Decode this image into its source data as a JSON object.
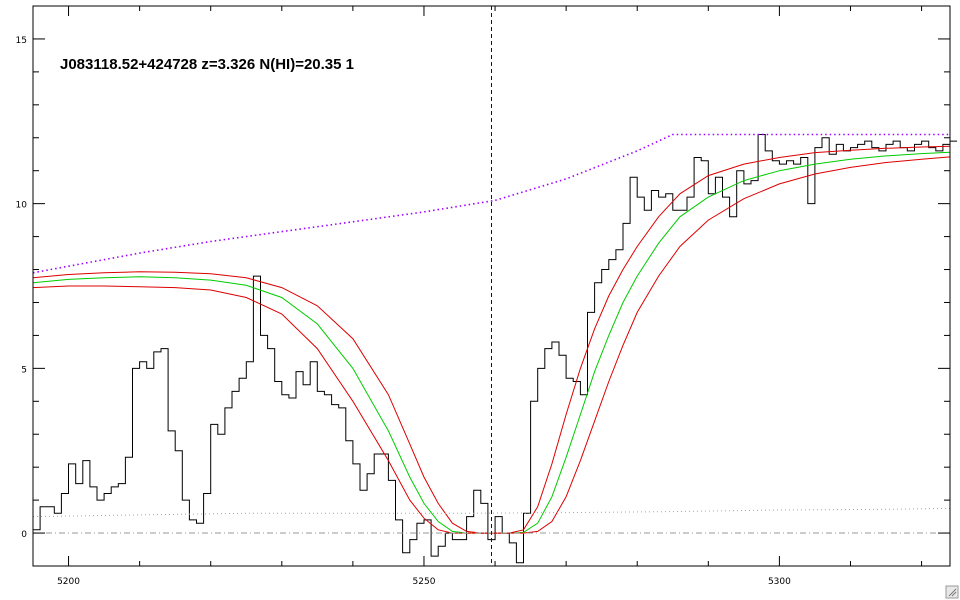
{
  "chart_data": {
    "type": "line",
    "title": "J083118.52+424728 z=3.326 N(HI)=20.35 1",
    "xlabel": "",
    "ylabel": "",
    "xlim": [
      5195,
      5324
    ],
    "ylim": [
      -1,
      16
    ],
    "xticks": [
      {
        "value": 5200,
        "label": "5200"
      },
      {
        "value": 5250,
        "label": "5250"
      },
      {
        "value": 5300,
        "label": "5300"
      }
    ],
    "yticks": [
      {
        "value": 0,
        "label": "0"
      },
      {
        "value": 5,
        "label": "5"
      },
      {
        "value": 10,
        "label": "10"
      },
      {
        "value": 15,
        "label": "15"
      }
    ],
    "grid": false,
    "center_marker_x": 5259.5,
    "zero_line_y": 0,
    "colors": {
      "flux": "#000000",
      "fit": "#00cc00",
      "bounds": "#dd0000",
      "continuum": "#a000ff",
      "error": "#ff8844",
      "marker": "#0000cc",
      "zero": "#999999"
    },
    "series": [
      {
        "key": "flux",
        "style": "step",
        "x": [
          5195,
          5196,
          5197,
          5198,
          5199,
          5200,
          5201,
          5202,
          5203,
          5204,
          5205,
          5206,
          5207,
          5208,
          5209,
          5210,
          5211,
          5212,
          5213,
          5214,
          5215,
          5216,
          5217,
          5218,
          5219,
          5220,
          5221,
          5222,
          5223,
          5224,
          5225,
          5226,
          5227,
          5228,
          5229,
          5230,
          5231,
          5232,
          5233,
          5234,
          5235,
          5236,
          5237,
          5238,
          5239,
          5240,
          5241,
          5242,
          5243,
          5244,
          5245,
          5246,
          5247,
          5248,
          5249,
          5250,
          5251,
          5252,
          5253,
          5254,
          5255,
          5256,
          5257,
          5258,
          5259,
          5260,
          5261,
          5262,
          5263,
          5264,
          5265,
          5266,
          5267,
          5268,
          5269,
          5270,
          5271,
          5272,
          5273,
          5274,
          5275,
          5276,
          5277,
          5278,
          5279,
          5280,
          5281,
          5282,
          5283,
          5284,
          5285,
          5286,
          5287,
          5288,
          5289,
          5290,
          5291,
          5292,
          5293,
          5294,
          5295,
          5296,
          5297,
          5298,
          5299,
          5300,
          5301,
          5302,
          5303,
          5304,
          5305,
          5306,
          5307,
          5308,
          5309,
          5310,
          5311,
          5312,
          5313,
          5314,
          5315,
          5316,
          5317,
          5318,
          5319,
          5320,
          5321,
          5322,
          5323,
          5324
        ],
        "y": [
          0.1,
          0.8,
          0.8,
          0.6,
          1.2,
          2.1,
          1.5,
          2.2,
          1.4,
          1.0,
          1.2,
          1.4,
          1.5,
          2.3,
          5.0,
          5.2,
          5.0,
          5.5,
          5.6,
          3.1,
          2.5,
          1.0,
          0.4,
          0.3,
          1.2,
          3.3,
          3.0,
          3.8,
          4.3,
          4.7,
          5.2,
          7.8,
          6.0,
          5.6,
          4.6,
          4.2,
          4.1,
          4.9,
          4.5,
          5.2,
          4.3,
          4.2,
          3.9,
          3.8,
          2.8,
          2.1,
          1.3,
          1.8,
          2.4,
          2.4,
          1.6,
          0.4,
          -0.6,
          -0.2,
          0.3,
          0.4,
          -0.7,
          -0.4,
          0.0,
          -0.2,
          -0.2,
          0.5,
          1.3,
          0.9,
          -0.2,
          0.5,
          0.0,
          -0.3,
          -0.9,
          0.6,
          4.0,
          5.0,
          5.6,
          5.8,
          5.4,
          4.7,
          4.6,
          4.2,
          6.7,
          7.6,
          8.0,
          8.3,
          8.6,
          9.4,
          10.8,
          10.2,
          9.8,
          10.4,
          10.2,
          10.3,
          9.8,
          9.8,
          10.2,
          11.4,
          11.3,
          10.3,
          10.8,
          10.2,
          9.6,
          11.0,
          10.6,
          10.7,
          12.1,
          11.6,
          11.3,
          11.2,
          11.3,
          11.2,
          11.4,
          10.0,
          11.7,
          12.0,
          11.5,
          11.8,
          11.6,
          11.7,
          11.8,
          11.9,
          11.7,
          11.6,
          11.8,
          11.9,
          11.7,
          11.6,
          11.8,
          11.9,
          11.7,
          11.6,
          11.8,
          11.9
        ]
      },
      {
        "key": "fit",
        "style": "line",
        "x": [
          5195,
          5200,
          5205,
          5210,
          5215,
          5220,
          5225,
          5230,
          5235,
          5240,
          5245,
          5248,
          5250,
          5252,
          5254,
          5256,
          5258,
          5260,
          5262,
          5264,
          5266,
          5268,
          5270,
          5272,
          5274,
          5276,
          5278,
          5280,
          5283,
          5286,
          5290,
          5295,
          5300,
          5305,
          5310,
          5315,
          5320,
          5324
        ],
        "y": [
          7.6,
          7.7,
          7.75,
          7.78,
          7.75,
          7.68,
          7.52,
          7.15,
          6.35,
          5.0,
          3.1,
          1.7,
          0.9,
          0.35,
          0.05,
          0.0,
          0.0,
          0.0,
          0.0,
          0.02,
          0.3,
          1.1,
          2.3,
          3.6,
          4.9,
          6.0,
          7.0,
          7.8,
          8.8,
          9.6,
          10.2,
          10.7,
          11.0,
          11.2,
          11.35,
          11.45,
          11.52,
          11.56
        ]
      },
      {
        "key": "upper",
        "style": "line",
        "x": [
          5195,
          5200,
          5205,
          5210,
          5215,
          5220,
          5225,
          5230,
          5235,
          5240,
          5245,
          5248,
          5250,
          5252,
          5254,
          5256,
          5258,
          5260,
          5262,
          5264,
          5266,
          5268,
          5270,
          5272,
          5274,
          5276,
          5278,
          5280,
          5283,
          5286,
          5290,
          5295,
          5300,
          5305,
          5310,
          5315,
          5320,
          5324
        ],
        "y": [
          7.75,
          7.85,
          7.9,
          7.93,
          7.92,
          7.87,
          7.75,
          7.45,
          6.9,
          5.9,
          4.2,
          2.7,
          1.7,
          0.9,
          0.3,
          0.05,
          0.0,
          0.0,
          0.0,
          0.1,
          0.8,
          2.1,
          3.6,
          5.0,
          6.2,
          7.2,
          8.0,
          8.7,
          9.6,
          10.3,
          10.85,
          11.2,
          11.4,
          11.55,
          11.62,
          11.68,
          11.72,
          11.74
        ]
      },
      {
        "key": "lower",
        "style": "line",
        "x": [
          5195,
          5200,
          5205,
          5210,
          5215,
          5220,
          5225,
          5230,
          5235,
          5240,
          5245,
          5248,
          5250,
          5252,
          5254,
          5256,
          5258,
          5260,
          5262,
          5264,
          5266,
          5268,
          5270,
          5272,
          5274,
          5276,
          5278,
          5280,
          5283,
          5286,
          5290,
          5295,
          5300,
          5305,
          5310,
          5315,
          5320,
          5324
        ],
        "y": [
          7.45,
          7.5,
          7.5,
          7.48,
          7.45,
          7.38,
          7.15,
          6.65,
          5.6,
          4.0,
          2.2,
          1.0,
          0.45,
          0.1,
          0.0,
          0.0,
          0.0,
          0.0,
          0.0,
          0.0,
          0.05,
          0.35,
          1.1,
          2.2,
          3.4,
          4.6,
          5.7,
          6.7,
          7.8,
          8.7,
          9.5,
          10.15,
          10.6,
          10.9,
          11.1,
          11.25,
          11.35,
          11.42
        ]
      },
      {
        "key": "continuum",
        "style": "dotted",
        "x": [
          5195,
          5200,
          5210,
          5220,
          5230,
          5240,
          5250,
          5260,
          5270,
          5280,
          5285,
          5290,
          5300,
          5310,
          5320,
          5324
        ],
        "y": [
          7.9,
          8.1,
          8.5,
          8.85,
          9.15,
          9.45,
          9.75,
          10.1,
          10.75,
          11.6,
          12.1,
          12.1,
          12.1,
          12.1,
          12.1,
          12.1
        ]
      },
      {
        "key": "error",
        "style": "dotted",
        "x": [
          5195,
          5210,
          5225,
          5240,
          5255,
          5270,
          5285,
          5300,
          5315,
          5324
        ],
        "y": [
          0.5,
          0.55,
          0.6,
          0.6,
          0.6,
          0.62,
          0.65,
          0.7,
          0.72,
          0.75
        ]
      }
    ]
  }
}
